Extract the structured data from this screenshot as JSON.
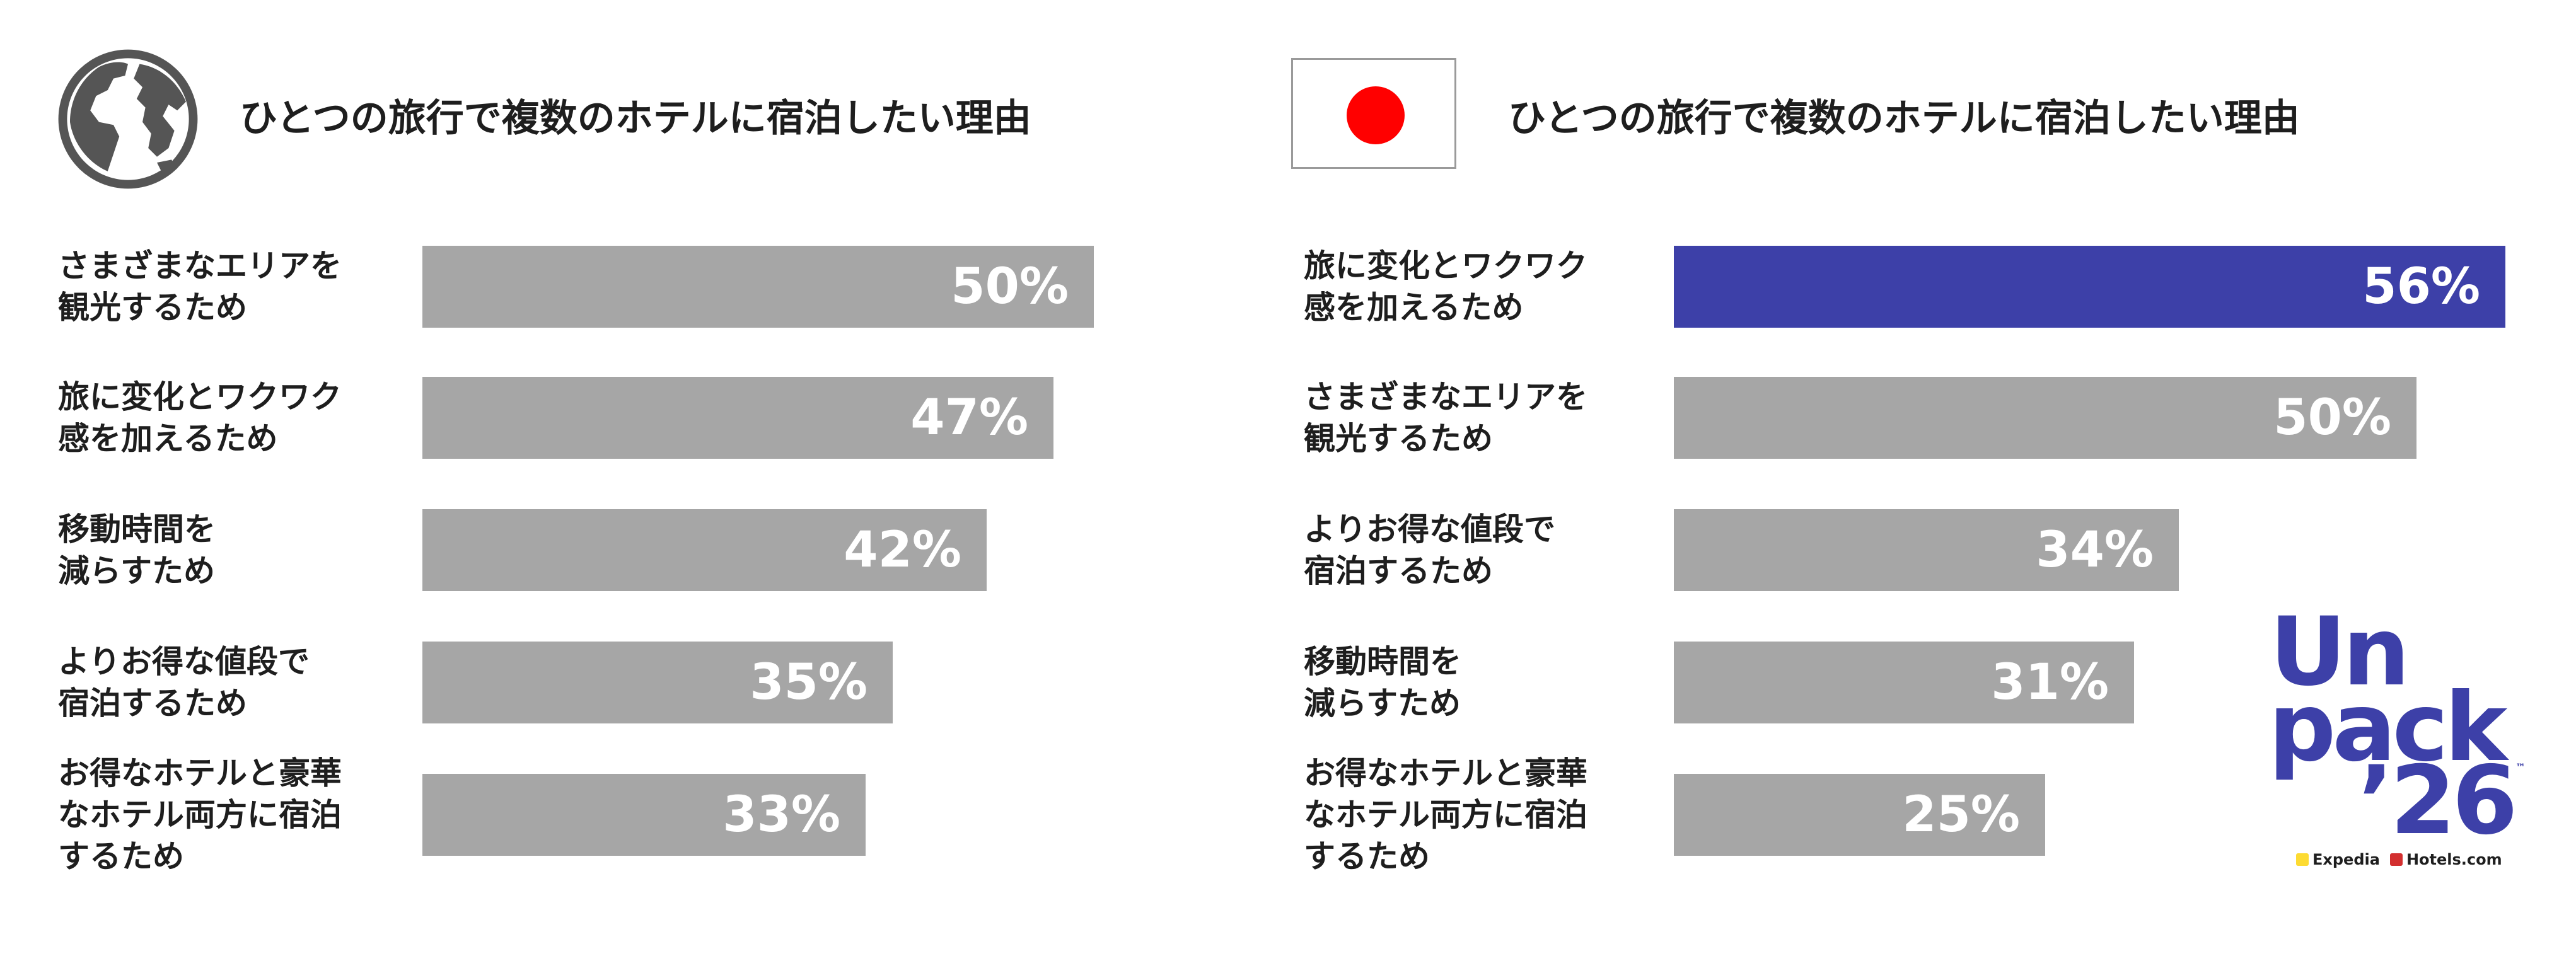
{
  "colors": {
    "default_bar": "#a6a6a6",
    "highlight_bar": "#3d40a8",
    "value_label": "#ffffff",
    "flag_disc": "#ff0000",
    "globe": "#555555",
    "logo": "#3d40a8"
  },
  "left_panel": {
    "icon": "globe-icon",
    "title": "ひとつの旅行で複数のホテルに宿泊したい理由"
  },
  "right_panel": {
    "icon": "japan-flag-icon",
    "title": "ひとつの旅行で複数のホテルに宿泊したい理由"
  },
  "logo": {
    "line1": "Un",
    "line2": "pack",
    "line3": "’26",
    "trademark": "™",
    "brand1": "Expedia",
    "brand2": "Hotels.com"
  },
  "chart_data": [
    {
      "type": "bar",
      "orientation": "horizontal",
      "title": "ひとつの旅行で複数のホテルに宿泊したい理由",
      "categories": [
        "さまざまなエリアを\n観光するため",
        "旅に変化とワクワク\n感を加えるため",
        "移動時間を\n減らすため",
        "よりお得な値段で\n宿泊するため",
        "お得なホテルと豪華\nなホテル両方に宿泊\nするため"
      ],
      "values": [
        50,
        47,
        42,
        35,
        33
      ],
      "value_labels": [
        "50%",
        "47%",
        "42%",
        "35%",
        "33%"
      ],
      "highlight_index": null,
      "xlim": [
        0,
        60
      ]
    },
    {
      "type": "bar",
      "orientation": "horizontal",
      "title": "ひとつの旅行で複数のホテルに宿泊したい理由",
      "categories": [
        "旅に変化とワクワク\n感を加えるため",
        "さまざまなエリアを\n観光するため",
        "よりお得な値段で\n宿泊するため",
        "移動時間を\n減らすため",
        "お得なホテルと豪華\nなホテル両方に宿泊\nするため"
      ],
      "values": [
        56,
        50,
        34,
        31,
        25
      ],
      "value_labels": [
        "56%",
        "50%",
        "34%",
        "31%",
        "25%"
      ],
      "highlight_index": 0,
      "xlim": [
        0,
        60
      ]
    }
  ]
}
